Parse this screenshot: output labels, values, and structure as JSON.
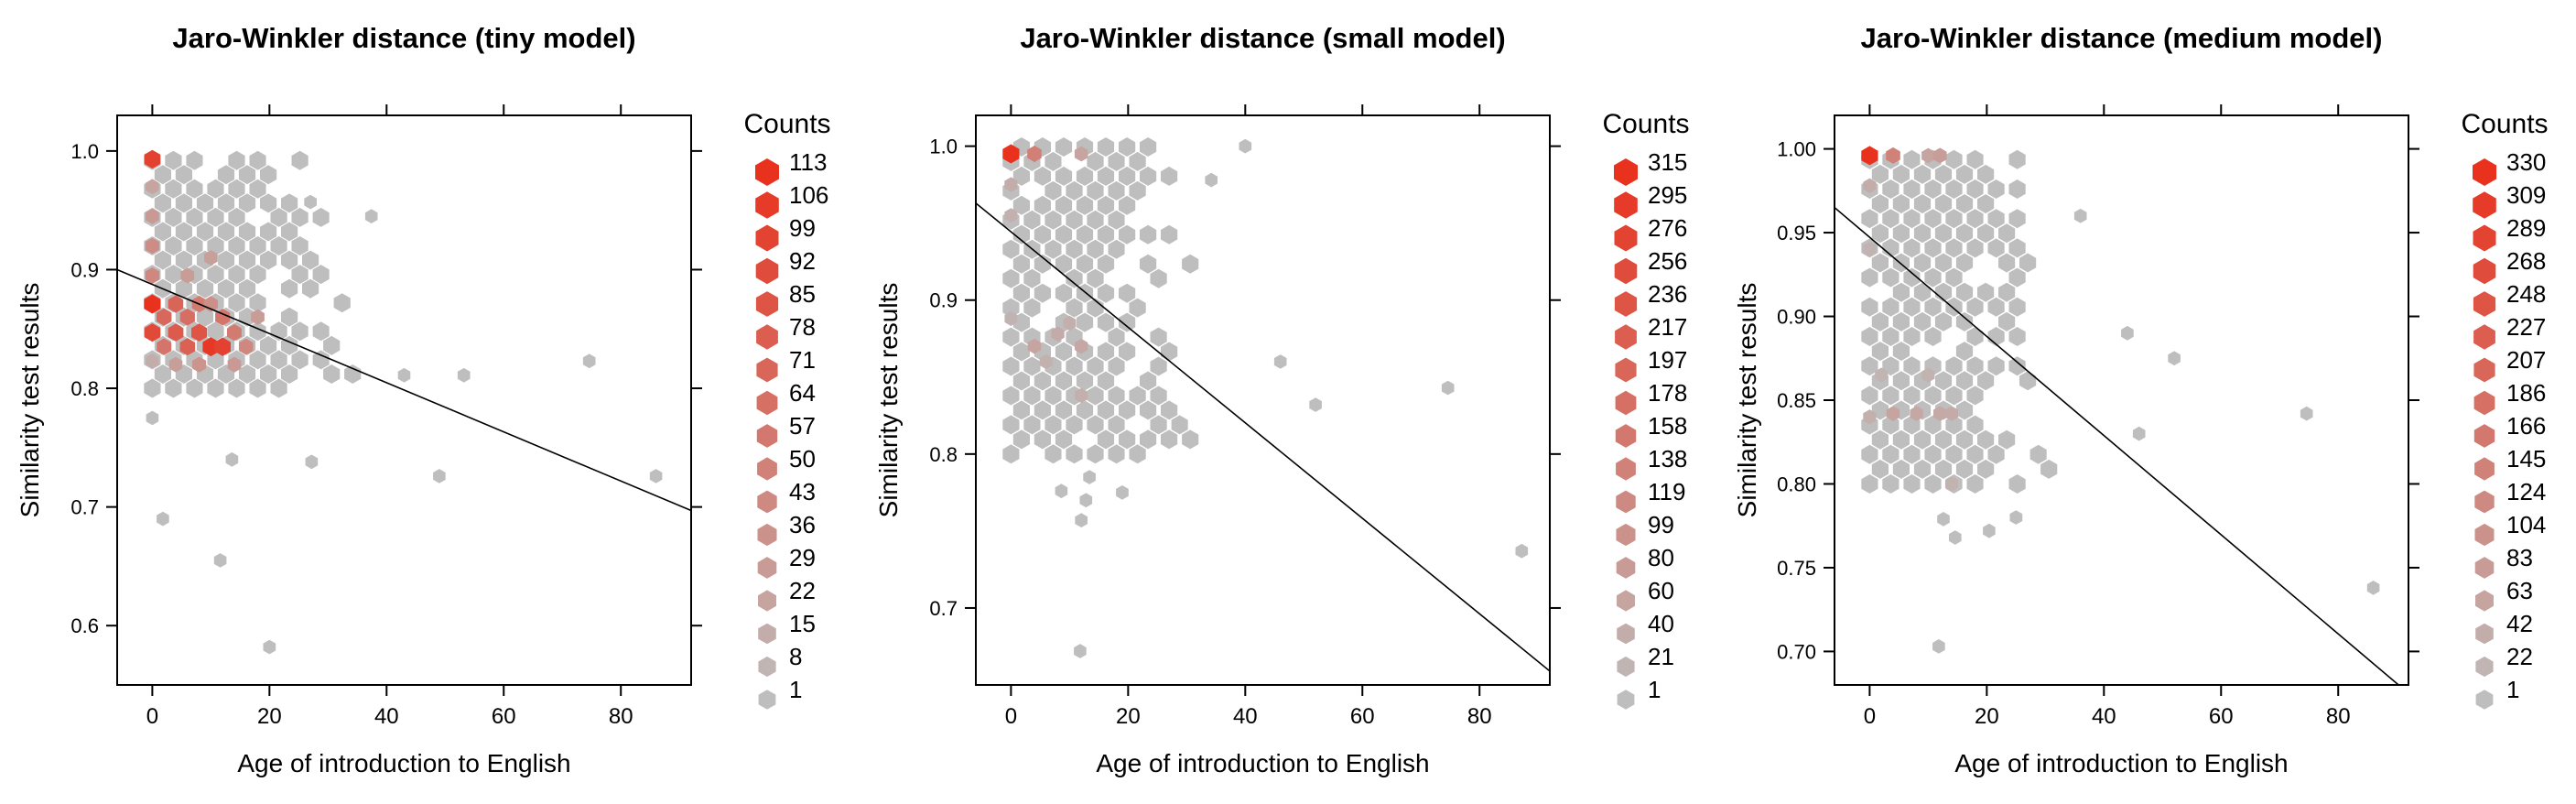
{
  "colors": {
    "low": "#bebebe",
    "high": "#e8321e",
    "axis": "#000000",
    "fit": "#000000"
  },
  "chart_data": [
    {
      "type": "hexbin",
      "title": "Jaro-Winkler distance (tiny model)",
      "xlabel": "Age of introduction to English",
      "ylabel": "Similarity test results",
      "xlim": [
        -6,
        92
      ],
      "ylim": [
        0.55,
        1.03
      ],
      "xticks": [
        "0",
        "20",
        "40",
        "60",
        "80"
      ],
      "yticks": [
        "0.6",
        "0.7",
        "0.8",
        "0.9",
        "1.0"
      ],
      "legend": {
        "title": "Counts",
        "position": "right",
        "levels": [
          "113",
          "106",
          "99",
          "92",
          "85",
          "78",
          "71",
          "64",
          "57",
          "50",
          "43",
          "36",
          "29",
          "22",
          "15",
          "8",
          "1"
        ]
      },
      "fit_line": {
        "x": [
          -6,
          92
        ],
        "y": [
          0.9,
          0.697
        ]
      },
      "points": [
        {
          "x": 0,
          "y": 0.993,
          "c": 100
        },
        {
          "x": 0,
          "y": 0.871,
          "c": 113
        },
        {
          "x": 0,
          "y": 0.847,
          "c": 95
        },
        {
          "x": 0,
          "y": 0.92,
          "c": 40
        },
        {
          "x": 0,
          "y": 0.945,
          "c": 30
        },
        {
          "x": 0,
          "y": 0.97,
          "c": 22
        },
        {
          "x": 0,
          "y": 0.895,
          "c": 45
        },
        {
          "x": 0,
          "y": 0.823,
          "c": 15
        },
        {
          "x": 0,
          "y": 0.775,
          "c": 1
        },
        {
          "x": 2,
          "y": 0.86,
          "c": 70
        },
        {
          "x": 2,
          "y": 0.835,
          "c": 60
        },
        {
          "x": 4,
          "y": 0.847,
          "c": 80
        },
        {
          "x": 4,
          "y": 0.871,
          "c": 72
        },
        {
          "x": 6,
          "y": 0.835,
          "c": 75
        },
        {
          "x": 6,
          "y": 0.86,
          "c": 65
        },
        {
          "x": 8,
          "y": 0.847,
          "c": 85
        },
        {
          "x": 8,
          "y": 0.871,
          "c": 55
        },
        {
          "x": 10,
          "y": 0.835,
          "c": 108
        },
        {
          "x": 12,
          "y": 0.835,
          "c": 100
        },
        {
          "x": 12,
          "y": 0.86,
          "c": 60
        },
        {
          "x": 14,
          "y": 0.847,
          "c": 55
        },
        {
          "x": 16,
          "y": 0.835,
          "c": 45
        },
        {
          "x": 10,
          "y": 0.871,
          "c": 38
        },
        {
          "x": 14,
          "y": 0.82,
          "c": 30
        },
        {
          "x": 6,
          "y": 0.895,
          "c": 28
        },
        {
          "x": 10,
          "y": 0.91,
          "c": 25
        },
        {
          "x": 8,
          "y": 0.82,
          "c": 35
        },
        {
          "x": 18,
          "y": 0.86,
          "c": 28
        },
        {
          "x": 4,
          "y": 0.82,
          "c": 26
        },
        {
          "x": 1.8,
          "y": 0.69,
          "c": 1
        },
        {
          "x": 11.6,
          "y": 0.655,
          "c": 1
        },
        {
          "x": 20,
          "y": 0.582,
          "c": 1
        },
        {
          "x": 13.6,
          "y": 0.74,
          "c": 1
        },
        {
          "x": 27.2,
          "y": 0.738,
          "c": 1
        },
        {
          "x": 49,
          "y": 0.726,
          "c": 1
        },
        {
          "x": 86,
          "y": 0.726,
          "c": 1
        },
        {
          "x": 74.6,
          "y": 0.823,
          "c": 1
        },
        {
          "x": 53.2,
          "y": 0.811,
          "c": 1
        },
        {
          "x": 27,
          "y": 0.957,
          "c": 1
        },
        {
          "x": 37.4,
          "y": 0.945,
          "c": 1
        },
        {
          "x": 43,
          "y": 0.811,
          "c": 1
        }
      ],
      "region": {
        "x": [
          0,
          42
        ],
        "y": [
          0.8,
          1.0
        ],
        "falloff": 32,
        "ystep": 0.012
      }
    },
    {
      "type": "hexbin",
      "title": "Jaro-Winkler distance (small model)",
      "xlabel": "Age of introduction to English",
      "ylabel": "Similarity test results",
      "xlim": [
        -6,
        92
      ],
      "ylim": [
        0.65,
        1.02
      ],
      "xticks": [
        "0",
        "20",
        "40",
        "60",
        "80"
      ],
      "yticks": [
        "0.7",
        "0.8",
        "0.9",
        "1.0"
      ],
      "legend": {
        "title": "Counts",
        "position": "right",
        "levels": [
          "315",
          "295",
          "276",
          "256",
          "236",
          "217",
          "197",
          "178",
          "158",
          "138",
          "119",
          "99",
          "80",
          "60",
          "40",
          "21",
          "1"
        ]
      },
      "fit_line": {
        "x": [
          -6,
          92
        ],
        "y": [
          0.963,
          0.659
        ]
      },
      "points": [
        {
          "x": 0,
          "y": 0.995,
          "c": 315
        },
        {
          "x": 4,
          "y": 0.995,
          "c": 140
        },
        {
          "x": 12,
          "y": 0.995,
          "c": 60
        },
        {
          "x": 0,
          "y": 0.975,
          "c": 40
        },
        {
          "x": 0,
          "y": 0.955,
          "c": 30
        },
        {
          "x": 4,
          "y": 0.87,
          "c": 60
        },
        {
          "x": 8,
          "y": 0.878,
          "c": 45
        },
        {
          "x": 12,
          "y": 0.87,
          "c": 50
        },
        {
          "x": 10,
          "y": 0.885,
          "c": 35
        },
        {
          "x": 6,
          "y": 0.86,
          "c": 30
        },
        {
          "x": 12,
          "y": 0.838,
          "c": 35
        },
        {
          "x": 0,
          "y": 0.888,
          "c": 25
        },
        {
          "x": 8.6,
          "y": 0.776,
          "c": 1
        },
        {
          "x": 12.8,
          "y": 0.77,
          "c": 1
        },
        {
          "x": 13.4,
          "y": 0.785,
          "c": 1
        },
        {
          "x": 12,
          "y": 0.757,
          "c": 1
        },
        {
          "x": 19,
          "y": 0.775,
          "c": 1
        },
        {
          "x": 11.8,
          "y": 0.672,
          "c": 1
        },
        {
          "x": 74.6,
          "y": 0.843,
          "c": 1
        },
        {
          "x": 87.2,
          "y": 0.737,
          "c": 1
        },
        {
          "x": 40,
          "y": 1.0,
          "c": 1
        },
        {
          "x": 34.2,
          "y": 0.978,
          "c": 1
        },
        {
          "x": 52,
          "y": 0.832,
          "c": 1
        },
        {
          "x": 46,
          "y": 0.86,
          "c": 1
        }
      ],
      "region": {
        "x": [
          0,
          42
        ],
        "y": [
          0.8,
          1.0
        ],
        "falloff": 30,
        "ystep": 0.0095
      }
    },
    {
      "type": "hexbin",
      "title": "Jaro-Winkler distance (medium model)",
      "xlabel": "Age of introduction to English",
      "ylabel": "Similarity test results",
      "xlim": [
        -6,
        92
      ],
      "ylim": [
        0.68,
        1.02
      ],
      "xticks": [
        "0",
        "20",
        "40",
        "60",
        "80"
      ],
      "yticks": [
        "0.70",
        "0.75",
        "0.80",
        "0.85",
        "0.90",
        "0.95",
        "1.00"
      ],
      "legend": {
        "title": "Counts",
        "position": "right",
        "levels": [
          "330",
          "309",
          "289",
          "268",
          "248",
          "227",
          "207",
          "186",
          "166",
          "145",
          "124",
          "104",
          "83",
          "63",
          "42",
          "22",
          "1"
        ]
      },
      "fit_line": {
        "x": [
          -6,
          92
        ],
        "y": [
          0.965,
          0.675
        ]
      },
      "points": [
        {
          "x": 0,
          "y": 0.996,
          "c": 330
        },
        {
          "x": 4,
          "y": 0.996,
          "c": 145
        },
        {
          "x": 10,
          "y": 0.996,
          "c": 60
        },
        {
          "x": 12,
          "y": 0.996,
          "c": 80
        },
        {
          "x": 0,
          "y": 0.978,
          "c": 40
        },
        {
          "x": 0,
          "y": 0.94,
          "c": 28
        },
        {
          "x": 4,
          "y": 0.842,
          "c": 60
        },
        {
          "x": 8,
          "y": 0.842,
          "c": 55
        },
        {
          "x": 12,
          "y": 0.842,
          "c": 50
        },
        {
          "x": 14,
          "y": 0.842,
          "c": 45
        },
        {
          "x": 10,
          "y": 0.865,
          "c": 30
        },
        {
          "x": 2,
          "y": 0.865,
          "c": 25
        },
        {
          "x": 14,
          "y": 0.8,
          "c": 30
        },
        {
          "x": 0,
          "y": 0.84,
          "c": 35
        },
        {
          "x": 12.6,
          "y": 0.779,
          "c": 1
        },
        {
          "x": 14.6,
          "y": 0.768,
          "c": 1
        },
        {
          "x": 11.8,
          "y": 0.703,
          "c": 1
        },
        {
          "x": 20.4,
          "y": 0.772,
          "c": 1
        },
        {
          "x": 25,
          "y": 0.78,
          "c": 1
        },
        {
          "x": 74.6,
          "y": 0.842,
          "c": 1
        },
        {
          "x": 86,
          "y": 0.738,
          "c": 1
        },
        {
          "x": 52,
          "y": 0.875,
          "c": 1
        },
        {
          "x": 46,
          "y": 0.83,
          "c": 1
        },
        {
          "x": 36,
          "y": 0.96,
          "c": 1
        },
        {
          "x": 44,
          "y": 0.89,
          "c": 1
        }
      ],
      "region": {
        "x": [
          0,
          42
        ],
        "y": [
          0.8,
          1.0
        ],
        "falloff": 30,
        "ystep": 0.0088
      }
    }
  ]
}
